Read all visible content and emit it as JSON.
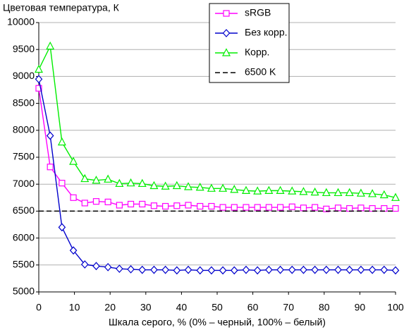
{
  "chart_data": {
    "type": "line",
    "title": "Цветовая температура, К",
    "x_label": "Шкала серого, % (0% – черный, 100% – белый)",
    "x": [
      0,
      3.2,
      6.5,
      9.7,
      12.9,
      16.1,
      19.4,
      22.6,
      25.8,
      29.0,
      32.3,
      35.5,
      38.7,
      41.9,
      45.2,
      48.4,
      51.6,
      54.8,
      58.1,
      61.3,
      64.5,
      67.7,
      71.0,
      74.2,
      77.4,
      80.6,
      83.9,
      87.1,
      90.3,
      93.5,
      96.8,
      100
    ],
    "series": [
      {
        "name": "sRGB",
        "color": "#ff00ff",
        "marker": "square",
        "values": [
          8780,
          7320,
          7020,
          6750,
          6650,
          6680,
          6670,
          6610,
          6630,
          6630,
          6600,
          6590,
          6600,
          6610,
          6590,
          6590,
          6570,
          6570,
          6570,
          6570,
          6570,
          6570,
          6580,
          6560,
          6570,
          6540,
          6560,
          6550,
          6560,
          6550,
          6550,
          6550
        ]
      },
      {
        "name": "Без корр.",
        "color": "#0000cc",
        "marker": "diamond",
        "values": [
          8950,
          7900,
          6200,
          5770,
          5510,
          5480,
          5460,
          5430,
          5420,
          5410,
          5410,
          5410,
          5400,
          5410,
          5400,
          5400,
          5400,
          5400,
          5410,
          5400,
          5410,
          5410,
          5410,
          5410,
          5410,
          5410,
          5410,
          5410,
          5410,
          5410,
          5410,
          5400
        ]
      },
      {
        "name": "Корр.",
        "color": "#00ee00",
        "marker": "triangle",
        "values": [
          9130,
          9560,
          7780,
          7420,
          7100,
          7070,
          7090,
          7010,
          7020,
          7010,
          6970,
          6960,
          6970,
          6950,
          6940,
          6920,
          6920,
          6900,
          6880,
          6870,
          6880,
          6880,
          6870,
          6860,
          6850,
          6840,
          6840,
          6840,
          6830,
          6820,
          6800,
          6750
        ]
      },
      {
        "name": "6500 K",
        "color": "#000000",
        "marker": "none",
        "dashed": true,
        "x": [
          0,
          100
        ],
        "values": [
          6500,
          6500
        ]
      }
    ],
    "xlim": [
      0,
      100
    ],
    "xticks": [
      0,
      10,
      20,
      30,
      40,
      50,
      60,
      70,
      80,
      90,
      100
    ],
    "ylim": [
      5000,
      10000
    ],
    "yticks": [
      5000,
      5500,
      6000,
      6500,
      7000,
      7500,
      8000,
      8500,
      9000,
      9500,
      10000
    ],
    "grid": true,
    "legend": "top-right"
  }
}
